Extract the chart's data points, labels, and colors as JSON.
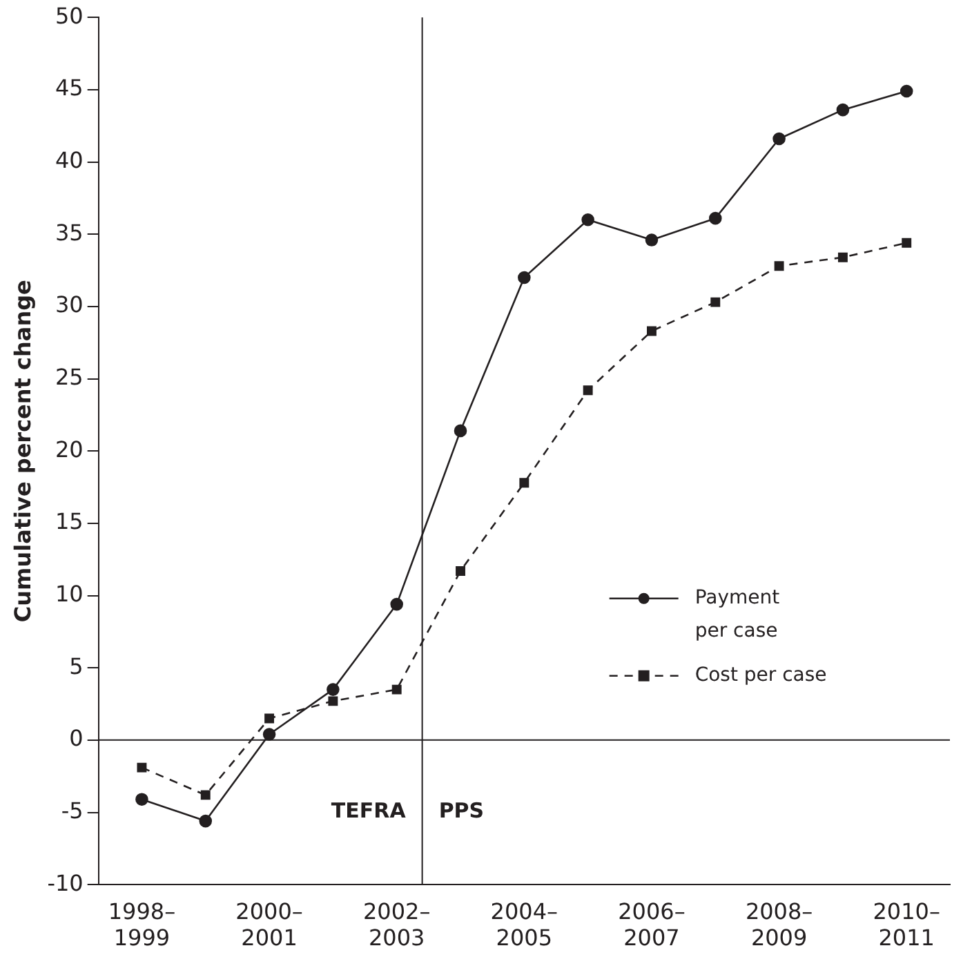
{
  "chart_data": {
    "type": "line",
    "ylabel": "Cumulative percent change",
    "categories": [
      "1998–1999",
      null,
      "2000–2001",
      null,
      "2002–2003",
      null,
      "2004–2005",
      null,
      "2006–2007",
      null,
      "2008–2009",
      null,
      "2010–2011"
    ],
    "ylim": [
      -10,
      50
    ],
    "yticks": [
      -10,
      -5,
      0,
      5,
      10,
      15,
      20,
      25,
      30,
      35,
      40,
      45,
      50
    ],
    "series": [
      {
        "name": "Payment per case",
        "color": "#231f20",
        "marker": "circle",
        "line_style": "solid",
        "values": [
          -4.1,
          -5.6,
          0.4,
          3.5,
          9.4,
          21.4,
          32.0,
          36.0,
          34.6,
          36.1,
          41.6,
          43.6,
          44.9
        ]
      },
      {
        "name": "Cost per case",
        "color": "#231f20",
        "marker": "square",
        "line_style": "dashed",
        "values": [
          -1.9,
          -3.8,
          1.5,
          2.7,
          3.5,
          11.7,
          17.8,
          24.2,
          28.3,
          30.3,
          32.8,
          33.4,
          34.4
        ]
      }
    ],
    "ref_lines": [
      {
        "axis": "y",
        "value": 0,
        "label": null
      }
    ],
    "annotations": [
      "TEFRA",
      "PPS"
    ],
    "grid": false,
    "legend": "right"
  }
}
